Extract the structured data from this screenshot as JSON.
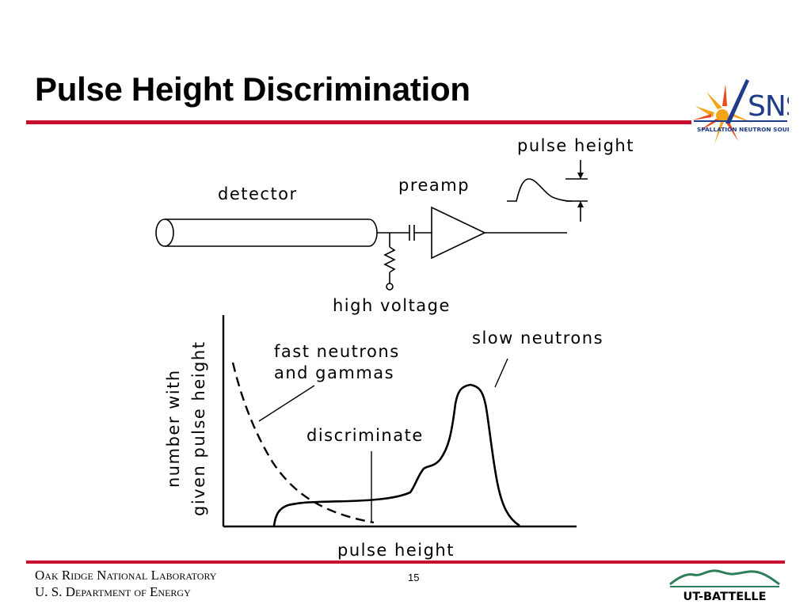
{
  "slide": {
    "title": "Pulse Height Discrimination",
    "page_number": "15",
    "accent_color": "#c8102e"
  },
  "logos": {
    "sns": {
      "wordmark": "SNS",
      "tagline": "SPALLATION NEUTRON SOURCE",
      "colors": [
        "#f5a31a",
        "#e84c1e",
        "#1f3b8a"
      ]
    },
    "ut_battelle": {
      "wordmark": "UT-BATTELLE",
      "color": "#2e7d5b"
    }
  },
  "footer": {
    "org_line1": "Oak Ridge National Laboratory",
    "org_line2": "U. S. Department of Energy"
  },
  "circuit": {
    "detector_label": "detector",
    "preamp_label": "preamp",
    "pulse_height_label": "pulse height",
    "high_voltage_label": "high voltage"
  },
  "spectrum": {
    "ylabel_line1": "number with",
    "ylabel_line2": "given pulse height",
    "xlabel": "pulse height",
    "fast_label_line1": "fast neutrons",
    "fast_label_line2": "and gammas",
    "slow_label": "slow neutrons",
    "discriminate_label": "discriminate"
  }
}
